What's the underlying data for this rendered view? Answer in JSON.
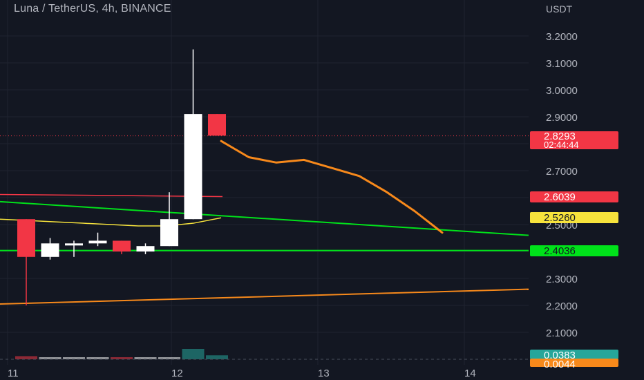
{
  "window": {
    "title": "Luna / TetherUS, 4h, BINANCE",
    "currency_label": "USDT"
  },
  "price_axis": {
    "ticks": [
      "3.2000",
      "3.1000",
      "3.0000",
      "2.9000",
      "2.7000",
      "2.5000",
      "2.3000",
      "2.2000",
      "2.1000"
    ]
  },
  "time_axis": {
    "ticks": [
      "11",
      "12",
      "13",
      "14"
    ]
  },
  "labels": {
    "current_price": "2.8293",
    "countdown": "02:44:44",
    "red_line_price": "2.6039",
    "yellow_ma_price": "2.5260",
    "support_price": "2.4036",
    "volume_teal": "0.0383",
    "volume_orange": "0.0044"
  },
  "colors": {
    "background": "#131722",
    "grid": "#1f2330",
    "up_candle": "#ffffff",
    "down_candle": "#f23645",
    "green_line": "#00e21a",
    "orange_line": "#f7891b",
    "yellow_ma": "#f7e33c",
    "red_line": "#f23645",
    "teal": "#26a69a",
    "axis_text": "#b2b5be"
  },
  "chart_data": {
    "type": "candlestick",
    "title": "Luna / TetherUS, 4h, BINANCE",
    "ylabel": "USDT",
    "ylim": [
      2.0,
      3.3
    ],
    "candles": [
      {
        "open": 2.52,
        "high": 2.52,
        "low": 2.2,
        "close": 2.38
      },
      {
        "open": 2.38,
        "high": 2.45,
        "low": 2.37,
        "close": 2.43
      },
      {
        "open": 2.43,
        "high": 2.44,
        "low": 2.38,
        "close": 2.43
      },
      {
        "open": 2.43,
        "high": 2.47,
        "low": 2.42,
        "close": 2.44
      },
      {
        "open": 2.44,
        "high": 2.44,
        "low": 2.39,
        "close": 2.4
      },
      {
        "open": 2.4,
        "high": 2.43,
        "low": 2.39,
        "close": 2.42
      },
      {
        "open": 2.42,
        "high": 2.62,
        "low": 2.42,
        "close": 2.52
      },
      {
        "open": 2.52,
        "high": 3.15,
        "low": 2.52,
        "close": 2.91
      },
      {
        "open": 2.91,
        "high": 2.91,
        "low": 2.83,
        "close": 2.83
      }
    ],
    "horizontal_lines": [
      {
        "name": "support",
        "price": 2.4036
      },
      {
        "name": "red-level",
        "price": 2.6039
      },
      {
        "name": "current-price",
        "price": 2.8293
      }
    ],
    "trendlines": [
      {
        "name": "green-descending",
        "from": 2.585,
        "to": 2.46
      },
      {
        "name": "orange-ascending",
        "from": 2.205,
        "to": 2.26
      }
    ],
    "projection_path": [
      2.81,
      2.75,
      2.73,
      2.74,
      2.71,
      2.68,
      2.62,
      2.55,
      2.47
    ],
    "volume": [
      {
        "value": 0.03,
        "dir": "down"
      },
      {
        "value": 0.02,
        "dir": "up"
      },
      {
        "value": 0.02,
        "dir": "up"
      },
      {
        "value": 0.02,
        "dir": "up"
      },
      {
        "value": 0.02,
        "dir": "down"
      },
      {
        "value": 0.02,
        "dir": "up"
      },
      {
        "value": 0.02,
        "dir": "up"
      },
      {
        "value": 0.1,
        "dir": "teal"
      },
      {
        "value": 0.0383,
        "dir": "teal"
      }
    ]
  }
}
